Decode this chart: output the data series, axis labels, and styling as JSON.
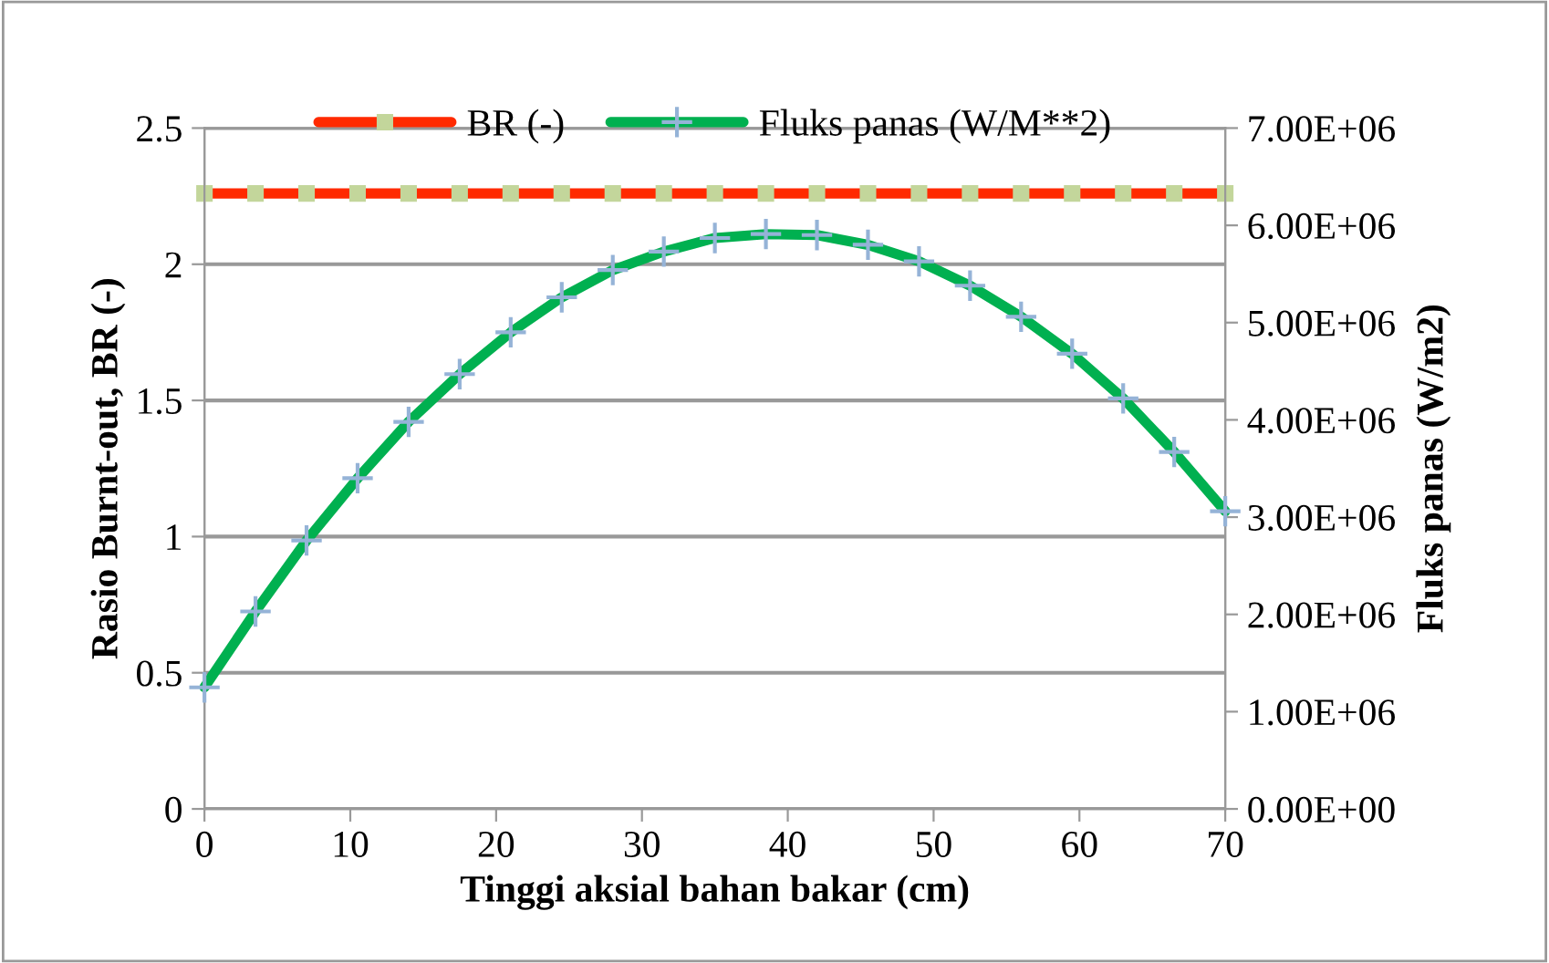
{
  "chart_data": {
    "type": "line",
    "xlabel": "Tinggi aksial bahan bakar (cm)",
    "ylabel": "Rasio Burnt-out, BR (-)",
    "y2label": "Fluks panas (W/m2)",
    "x": [
      0,
      3.5,
      7,
      10.5,
      14,
      17.5,
      21,
      24.5,
      28,
      31.5,
      35,
      38.5,
      42,
      45.5,
      49,
      52.5,
      56,
      59.5,
      63,
      66.5,
      70
    ],
    "series": [
      {
        "name": "BR (-)",
        "color": "#ff2a00",
        "marker": "square",
        "values": [
          2.26,
          2.26,
          2.26,
          2.26,
          2.26,
          2.26,
          2.26,
          2.26,
          2.26,
          2.26,
          2.26,
          2.26,
          2.26,
          2.26,
          2.26,
          2.26,
          2.26,
          2.26,
          2.26,
          2.26,
          2.26
        ]
      },
      {
        "name": "Fluks panas (W/M**2)",
        "color": "#00b050",
        "marker": "cross",
        "axis": "y2",
        "values": [
          1250000,
          2030000,
          2760000,
          3400000,
          3980000,
          4470000,
          4900000,
          5260000,
          5540000,
          5730000,
          5870000,
          5910000,
          5900000,
          5800000,
          5630000,
          5380000,
          5060000,
          4680000,
          4220000,
          3670000,
          3060000
        ]
      }
    ],
    "xlim": [
      0,
      70
    ],
    "xticks": [
      0,
      10,
      20,
      30,
      40,
      50,
      60,
      70
    ],
    "ylim": [
      0,
      2.5
    ],
    "yticks": [
      0,
      0.5,
      1,
      1.5,
      2,
      2.5
    ],
    "y2lim": [
      0,
      7000000
    ],
    "y2ticks": [
      {
        "value": 0,
        "label": "0.00E+00"
      },
      {
        "value": 1000000,
        "label": "1.00E+06"
      },
      {
        "value": 2000000,
        "label": "2.00E+06"
      },
      {
        "value": 3000000,
        "label": "3.00E+06"
      },
      {
        "value": 4000000,
        "label": "4.00E+06"
      },
      {
        "value": 5000000,
        "label": "5.00E+06"
      },
      {
        "value": 6000000,
        "label": "6.00E+06"
      },
      {
        "value": 7000000,
        "label": "7.00E+06"
      }
    ],
    "grid": "y",
    "legend": "top"
  }
}
